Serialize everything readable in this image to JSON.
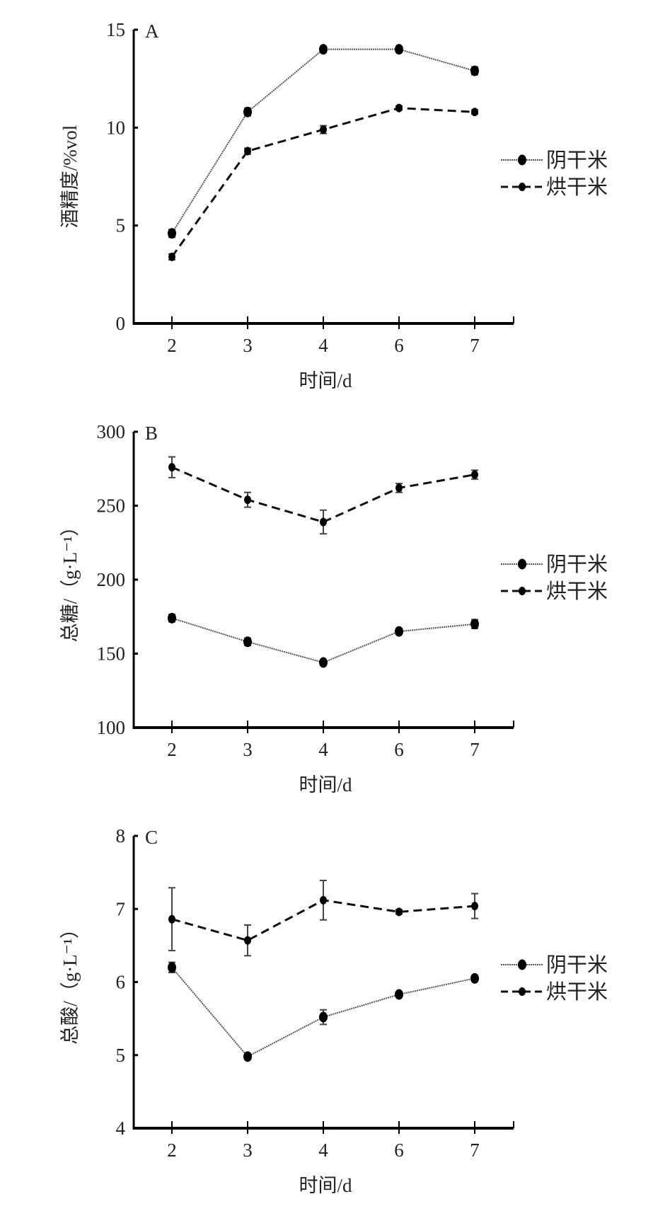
{
  "chart_data": [
    {
      "type": "line",
      "panel": "A",
      "xlabel": "时间/d",
      "ylabel": "酒精度/%vol",
      "categories": [
        "2",
        "3",
        "4",
        "6",
        "7"
      ],
      "yticks": [
        "0",
        "5",
        "10",
        "15"
      ],
      "ylim": [
        0,
        15
      ],
      "legend": "right",
      "series": [
        {
          "name": "阴干米",
          "values": [
            4.6,
            10.8,
            14.0,
            14.0,
            12.9
          ],
          "errors": [
            0.2,
            0.2,
            0.15,
            0.15,
            0.2
          ],
          "style": "dotted"
        },
        {
          "name": "烘干米",
          "values": [
            3.4,
            8.8,
            9.9,
            11.0,
            10.8
          ],
          "errors": [
            0.15,
            0.15,
            0.2,
            0.1,
            0.1
          ],
          "style": "dashed"
        }
      ]
    },
    {
      "type": "line",
      "panel": "B",
      "xlabel": "时间/d",
      "ylabel": "总糖/（g·L⁻¹）",
      "categories": [
        "2",
        "3",
        "4",
        "6",
        "7"
      ],
      "yticks": [
        "100",
        "150",
        "200",
        "250",
        "300"
      ],
      "ylim": [
        100,
        300
      ],
      "legend": "right",
      "series": [
        {
          "name": "阴干米",
          "values": [
            174,
            158,
            144,
            165,
            170
          ],
          "errors": [
            2.5,
            2.5,
            1.5,
            2,
            3
          ],
          "style": "dotted"
        },
        {
          "name": "烘干米",
          "values": [
            276,
            254,
            239,
            262,
            271
          ],
          "errors": [
            7,
            5,
            8,
            3,
            3
          ],
          "style": "dashed"
        }
      ]
    },
    {
      "type": "line",
      "panel": "C",
      "xlabel": "时间/d",
      "ylabel": "总酸/（g·L⁻¹）",
      "categories": [
        "2",
        "3",
        "4",
        "6",
        "7"
      ],
      "yticks": [
        "4",
        "5",
        "6",
        "7",
        "8"
      ],
      "ylim": [
        4,
        8
      ],
      "legend": "right",
      "series": [
        {
          "name": "阴干米",
          "values": [
            6.2,
            4.98,
            5.52,
            5.83,
            6.05
          ],
          "errors": [
            0.07,
            0.04,
            0.1,
            0.03,
            0.04
          ],
          "style": "dotted"
        },
        {
          "name": "烘干米",
          "values": [
            6.86,
            6.57,
            7.12,
            6.96,
            7.04
          ],
          "errors": [
            0.43,
            0.21,
            0.27,
            0.03,
            0.17
          ],
          "style": "dashed"
        }
      ]
    }
  ]
}
